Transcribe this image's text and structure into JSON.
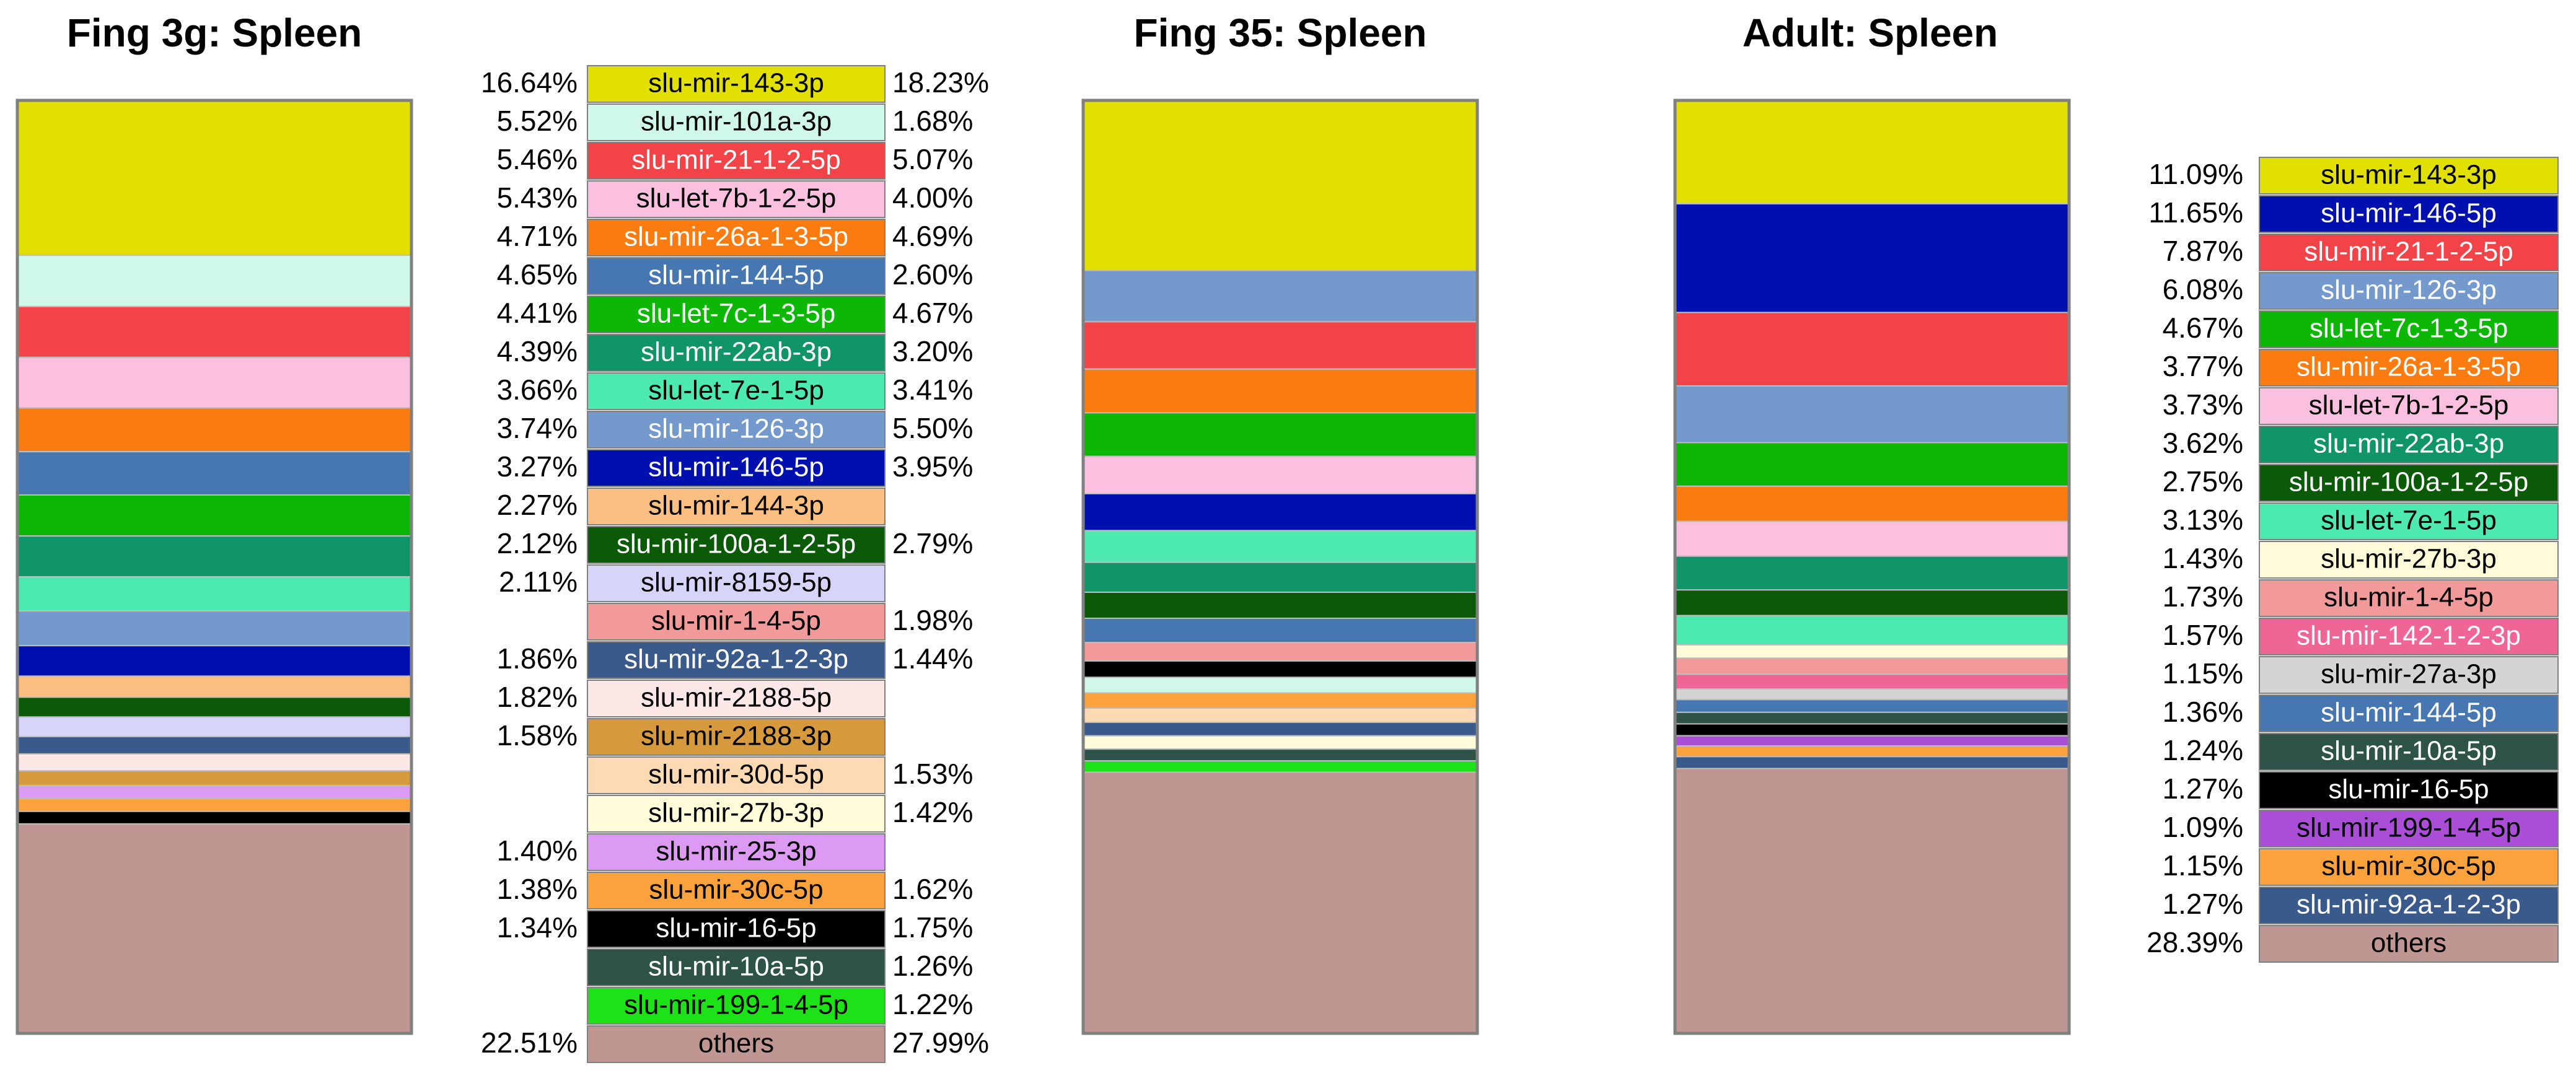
{
  "chart_data": [
    {
      "type": "bar",
      "title": "Fing 3g: Spleen",
      "stack": [
        {
          "name": "slu-mir-143-3p",
          "value": 16.64
        },
        {
          "name": "slu-mir-101a-3p",
          "value": 5.52
        },
        {
          "name": "slu-mir-21-1-2-5p",
          "value": 5.46
        },
        {
          "name": "slu-let-7b-1-2-5p",
          "value": 5.43
        },
        {
          "name": "slu-mir-26a-1-3-5p",
          "value": 4.71
        },
        {
          "name": "slu-mir-144-5p",
          "value": 4.65
        },
        {
          "name": "slu-let-7c-1-3-5p",
          "value": 4.41
        },
        {
          "name": "slu-mir-22ab-3p",
          "value": 4.39
        },
        {
          "name": "slu-let-7e-1-5p",
          "value": 3.66
        },
        {
          "name": "slu-mir-126-3p",
          "value": 3.74
        },
        {
          "name": "slu-mir-146-5p",
          "value": 3.27
        },
        {
          "name": "slu-mir-144-3p",
          "value": 2.27
        },
        {
          "name": "slu-mir-100a-1-2-5p",
          "value": 2.12
        },
        {
          "name": "slu-mir-8159-5p",
          "value": 2.11
        },
        {
          "name": "slu-mir-92a-1-2-3p",
          "value": 1.86
        },
        {
          "name": "slu-mir-2188-5p",
          "value": 1.82
        },
        {
          "name": "slu-mir-2188-3p",
          "value": 1.58
        },
        {
          "name": "slu-mir-25-3p",
          "value": 1.4
        },
        {
          "name": "slu-mir-30c-5p",
          "value": 1.38
        },
        {
          "name": "slu-mir-16-5p",
          "value": 1.34
        },
        {
          "name": "others",
          "value": 22.51
        }
      ]
    },
    {
      "type": "bar",
      "title": "Fing 35: Spleen",
      "stack": [
        {
          "name": "slu-mir-143-3p",
          "value": 18.23
        },
        {
          "name": "slu-mir-126-3p",
          "value": 5.5
        },
        {
          "name": "slu-mir-21-1-2-5p",
          "value": 5.07
        },
        {
          "name": "slu-mir-26a-1-3-5p",
          "value": 4.69
        },
        {
          "name": "slu-let-7c-1-3-5p",
          "value": 4.67
        },
        {
          "name": "slu-let-7b-1-2-5p",
          "value": 4.0
        },
        {
          "name": "slu-mir-146-5p",
          "value": 3.95
        },
        {
          "name": "slu-let-7e-1-5p",
          "value": 3.41
        },
        {
          "name": "slu-mir-22ab-3p",
          "value": 3.2
        },
        {
          "name": "slu-mir-100a-1-2-5p",
          "value": 2.79
        },
        {
          "name": "slu-mir-144-5p",
          "value": 2.6
        },
        {
          "name": "slu-mir-1-4-5p",
          "value": 1.98
        },
        {
          "name": "slu-mir-16-5p",
          "value": 1.75
        },
        {
          "name": "slu-mir-101a-3p",
          "value": 1.68
        },
        {
          "name": "slu-mir-30c-5p",
          "value": 1.62
        },
        {
          "name": "slu-mir-30d-5p",
          "value": 1.53
        },
        {
          "name": "slu-mir-92a-1-2-3p",
          "value": 1.44
        },
        {
          "name": "slu-mir-27b-3p",
          "value": 1.42
        },
        {
          "name": "slu-mir-10a-5p",
          "value": 1.26
        },
        {
          "name": "slu-mir-199-1-4-5p",
          "value": 1.22
        },
        {
          "name": "others",
          "value": 27.99
        }
      ]
    },
    {
      "type": "bar",
      "title": "Adult: Spleen",
      "stack": [
        {
          "name": "slu-mir-143-3p",
          "value": 11.09
        },
        {
          "name": "slu-mir-146-5p",
          "value": 11.65
        },
        {
          "name": "slu-mir-21-1-2-5p",
          "value": 7.87
        },
        {
          "name": "slu-mir-126-3p",
          "value": 6.08
        },
        {
          "name": "slu-let-7c-1-3-5p",
          "value": 4.67
        },
        {
          "name": "slu-mir-26a-1-3-5p",
          "value": 3.77
        },
        {
          "name": "slu-let-7b-1-2-5p",
          "value": 3.73
        },
        {
          "name": "slu-mir-22ab-3p",
          "value": 3.62
        },
        {
          "name": "slu-mir-100a-1-2-5p",
          "value": 2.75
        },
        {
          "name": "slu-let-7e-1-5p",
          "value": 3.13
        },
        {
          "name": "slu-mir-27b-3p",
          "value": 1.43
        },
        {
          "name": "slu-mir-1-4-5p",
          "value": 1.73
        },
        {
          "name": "slu-mir-142-1-2-3p",
          "value": 1.57
        },
        {
          "name": "slu-mir-27a-3p",
          "value": 1.15
        },
        {
          "name": "slu-mir-144-5p",
          "value": 1.36
        },
        {
          "name": "slu-mir-10a-5p",
          "value": 1.24
        },
        {
          "name": "slu-mir-16-5p",
          "value": 1.27
        },
        {
          "name": "slu-mir-199-1-4-5p",
          "value": 1.09
        },
        {
          "name": "slu-mir-30c-5p",
          "value": 1.15
        },
        {
          "name": "slu-mir-92a-1-2-3p",
          "value": 1.27
        },
        {
          "name": "others",
          "value": 28.39
        }
      ]
    }
  ],
  "legend_left": {
    "left_pct": [
      "16.64%",
      "5.52%",
      "5.46%",
      "5.43%",
      "4.71%",
      "4.65%",
      "4.41%",
      "4.39%",
      "3.66%",
      "3.74%",
      "3.27%",
      "2.27%",
      "2.12%",
      "2.11%",
      "",
      "1.86%",
      "1.82%",
      "1.58%",
      "",
      "",
      "1.40%",
      "1.38%",
      "1.34%",
      "",
      "",
      "22.51%"
    ],
    "right_pct": [
      "18.23%",
      "1.68%",
      "5.07%",
      "4.00%",
      "4.69%",
      "2.60%",
      "4.67%",
      "3.20%",
      "3.41%",
      "5.50%",
      "3.95%",
      "",
      "2.79%",
      "",
      "1.98%",
      "1.44%",
      "",
      "",
      "1.53%",
      "1.42%",
      "",
      "1.62%",
      "1.75%",
      "1.26%",
      "1.22%",
      "27.99%"
    ],
    "labels": [
      "slu-mir-143-3p",
      "slu-mir-101a-3p",
      "slu-mir-21-1-2-5p",
      "slu-let-7b-1-2-5p",
      "slu-mir-26a-1-3-5p",
      "slu-mir-144-5p",
      "slu-let-7c-1-3-5p",
      "slu-mir-22ab-3p",
      "slu-let-7e-1-5p",
      "slu-mir-126-3p",
      "slu-mir-146-5p",
      "slu-mir-144-3p",
      "slu-mir-100a-1-2-5p",
      "slu-mir-8159-5p",
      "slu-mir-1-4-5p",
      "slu-mir-92a-1-2-3p",
      "slu-mir-2188-5p",
      "slu-mir-2188-3p",
      "slu-mir-30d-5p",
      "slu-mir-27b-3p",
      "slu-mir-25-3p",
      "slu-mir-30c-5p",
      "slu-mir-16-5p",
      "slu-mir-10a-5p",
      "slu-mir-199-1-4-5p",
      "others"
    ]
  },
  "legend_right": {
    "pct": [
      "11.09%",
      "11.65%",
      "7.87%",
      "6.08%",
      "4.67%",
      "3.77%",
      "3.73%",
      "3.62%",
      "2.75%",
      "3.13%",
      "1.43%",
      "1.73%",
      "1.57%",
      "1.15%",
      "1.36%",
      "1.24%",
      "1.27%",
      "1.09%",
      "1.15%",
      "1.27%",
      "28.39%"
    ],
    "labels": [
      "slu-mir-143-3p",
      "slu-mir-146-5p",
      "slu-mir-21-1-2-5p",
      "slu-mir-126-3p",
      "slu-let-7c-1-3-5p",
      "slu-mir-26a-1-3-5p",
      "slu-let-7b-1-2-5p",
      "slu-mir-22ab-3p",
      "slu-mir-100a-1-2-5p",
      "slu-let-7e-1-5p",
      "slu-mir-27b-3p",
      "slu-mir-1-4-5p",
      "slu-mir-142-1-2-3p",
      "slu-mir-27a-3p",
      "slu-mir-144-5p",
      "slu-mir-10a-5p",
      "slu-mir-16-5p",
      "slu-mir-199-1-4-5p",
      "slu-mir-30c-5p",
      "slu-mir-92a-1-2-3p",
      "others"
    ]
  },
  "colors": {
    "slu-mir-143-3p": "#e1e000",
    "slu-mir-101a-3p": "#cff8e8",
    "slu-mir-21-1-2-5p": "#f24448",
    "slu-let-7b-1-2-5p": "#fbbfdf",
    "slu-mir-26a-1-3-5p": "#fa7b10",
    "slu-mir-144-5p": "#4677b1",
    "slu-let-7c-1-3-5p": "#0cb805",
    "slu-mir-22ab-3p": "#109568",
    "slu-let-7e-1-5p": "#4deab0",
    "slu-mir-126-3p": "#7499cc",
    "slu-mir-146-5p": "#0010ae",
    "slu-mir-144-3p": "#fbbf81",
    "slu-mir-100a-1-2-5p": "#0a5a08",
    "slu-mir-8159-5p": "#d6d4f8",
    "slu-mir-1-4-5p": "#f29a99",
    "slu-mir-92a-1-2-3p": "#3b5a8c",
    "slu-mir-2188-5p": "#fde7e7",
    "slu-mir-2188-3p": "#d6993c",
    "slu-mir-30d-5p": "#fdd9b4",
    "slu-mir-27b-3p": "#fefbd8",
    "slu-mir-25-3p": "#dc9af2",
    "slu-mir-30c-5p": "#fba23c",
    "slu-mir-16-5p": "#000000",
    "slu-mir-10a-5p": "#2e544a",
    "slu-mir-199-1-4-5p": "#1de218",
    "slu-mir-142-1-2-3p": "#ef6596",
    "slu-mir-27a-3p": "#d4d4d4",
    "slu-mir-199-1-4-5p_adult": "#aa4ed8",
    "others": "#c09693",
    "light_text": [
      "slu-mir-21-1-2-5p",
      "slu-mir-26a-1-3-5p",
      "slu-mir-144-5p",
      "slu-let-7c-1-3-5p",
      "slu-mir-22ab-3p",
      "slu-mir-126-3p",
      "slu-mir-146-5p",
      "slu-mir-100a-1-2-5p",
      "slu-mir-92a-1-2-3p",
      "slu-mir-16-5p",
      "slu-mir-10a-5p",
      "slu-mir-142-1-2-3p"
    ]
  }
}
